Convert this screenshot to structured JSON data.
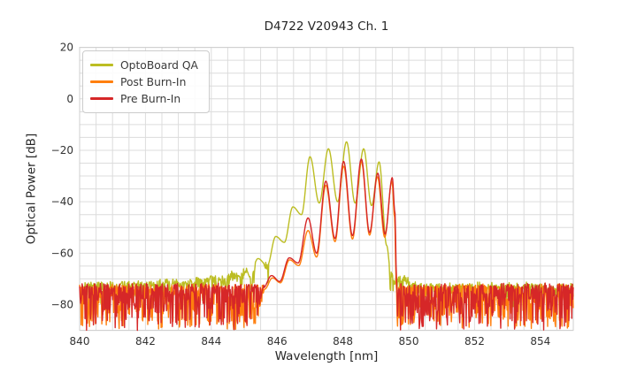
{
  "title": "D4722 V20943 Ch. 1",
  "x_axis_label": "Wavelength [nm]",
  "y_axis_label": "Optical Power [dB]",
  "legend": [
    {
      "label": "OptoBoard QA",
      "color": "#bcbd22"
    },
    {
      "label": "Post Burn-In",
      "color": "#ff7f0e"
    },
    {
      "label": "Pre Burn-In",
      "color": "#d62728"
    }
  ],
  "chart_data": {
    "type": "line",
    "title": "D4722 V20943 Ch. 1",
    "xlabel": "Wavelength [nm]",
    "ylabel": "Optical Power [dB]",
    "xlim": [
      840,
      855
    ],
    "ylim": [
      -90,
      20
    ],
    "x_ticks": [
      840,
      842,
      844,
      846,
      848,
      850,
      852,
      854
    ],
    "x_tick_labels": [
      "840",
      "842",
      "844",
      "846",
      "848",
      "850",
      "852",
      "854"
    ],
    "y_ticks": [
      20,
      0,
      -20,
      -40,
      -60,
      -80
    ],
    "y_tick_labels": [
      "20",
      "0",
      "−20",
      "−40",
      "−60",
      "−80"
    ],
    "grid": {
      "on": true,
      "x_step_nm": 0.5,
      "y_step_db": 5,
      "color": "#dcdcdc"
    },
    "legend_position": "upper left",
    "series": [
      {
        "name": "OptoBoard QA",
        "color": "#bcbd22",
        "seed": 11,
        "noise": {
          "type": "jitter",
          "up": 1.2,
          "small": 2.2,
          "deep": 8,
          "deep_pow": 4,
          "active_below": -64
        },
        "envelope": [
          [
            840,
            -72
          ],
          [
            841,
            -71.8
          ],
          [
            842,
            -71.4
          ],
          [
            843,
            -70.8
          ],
          [
            843.8,
            -70
          ],
          [
            844.3,
            -68.8
          ],
          [
            844.6,
            -67.4
          ],
          [
            844.85,
            -67.9
          ],
          [
            845.05,
            -66.8
          ],
          [
            845.2,
            -67.2
          ],
          [
            845.42,
            -62.1
          ],
          [
            845.7,
            -64.8
          ],
          [
            845.96,
            -53.5
          ],
          [
            846.22,
            -55.8
          ],
          [
            846.48,
            -42
          ],
          [
            846.74,
            -45
          ],
          [
            847.0,
            -22.5
          ],
          [
            847.28,
            -40.5
          ],
          [
            847.56,
            -19.4
          ],
          [
            847.84,
            -40
          ],
          [
            848.11,
            -16.7
          ],
          [
            848.37,
            -40.5
          ],
          [
            848.63,
            -19.4
          ],
          [
            848.87,
            -41.5
          ],
          [
            849.1,
            -24.5
          ],
          [
            849.33,
            -57
          ],
          [
            849.45,
            -67
          ],
          [
            849.55,
            -68.8
          ],
          [
            849.75,
            -68.9
          ],
          [
            849.95,
            -69.3
          ],
          [
            850.1,
            -71
          ],
          [
            850.25,
            -72.2
          ],
          [
            851,
            -72.3
          ],
          [
            852,
            -72.2
          ],
          [
            853,
            -72.3
          ],
          [
            854,
            -72.2
          ],
          [
            855,
            -72.3
          ]
        ]
      },
      {
        "name": "Post Burn-In",
        "color": "#ff7f0e",
        "seed": 23,
        "noise": {
          "type": "spiky",
          "top": -72.0,
          "small": 1.8,
          "deep": 16.5,
          "deep_pow": 2.1
        },
        "envelope": [
          [
            840,
            -96
          ],
          [
            845.3,
            -96
          ],
          [
            845.5,
            -80
          ],
          [
            845.62,
            -74
          ],
          [
            845.86,
            -69.6
          ],
          [
            846.1,
            -71.5
          ],
          [
            846.38,
            -62.6
          ],
          [
            846.66,
            -64.8
          ],
          [
            846.94,
            -51.2
          ],
          [
            847.2,
            -61.5
          ],
          [
            847.48,
            -33.6
          ],
          [
            847.76,
            -55.5
          ],
          [
            848.02,
            -26.2
          ],
          [
            848.29,
            -54.5
          ],
          [
            848.56,
            -24.4
          ],
          [
            848.81,
            -53
          ],
          [
            849.05,
            -30.3
          ],
          [
            849.27,
            -53.8
          ],
          [
            849.49,
            -32
          ],
          [
            849.57,
            -46
          ],
          [
            849.62,
            -72
          ],
          [
            849.67,
            -96
          ],
          [
            855,
            -96
          ]
        ]
      },
      {
        "name": "Pre Burn-In",
        "color": "#d62728",
        "seed": 47,
        "noise": {
          "type": "spiky",
          "top": -71.6,
          "small": 1.8,
          "deep": 17,
          "deep_pow": 2.1
        },
        "envelope": [
          [
            840,
            -96
          ],
          [
            845.3,
            -96
          ],
          [
            845.45,
            -80
          ],
          [
            845.58,
            -73.5
          ],
          [
            845.83,
            -68.7
          ],
          [
            846.08,
            -71
          ],
          [
            846.37,
            -61.8
          ],
          [
            846.64,
            -63.8
          ],
          [
            846.94,
            -46.3
          ],
          [
            847.2,
            -60
          ],
          [
            847.48,
            -32
          ],
          [
            847.76,
            -54.3
          ],
          [
            848.02,
            -24.3
          ],
          [
            848.29,
            -53.2
          ],
          [
            848.56,
            -23.4
          ],
          [
            848.81,
            -52
          ],
          [
            849.06,
            -28.9
          ],
          [
            849.28,
            -52.6
          ],
          [
            849.5,
            -30.6
          ],
          [
            849.58,
            -44
          ],
          [
            849.63,
            -70
          ],
          [
            849.68,
            -96
          ],
          [
            855,
            -96
          ]
        ]
      }
    ]
  }
}
